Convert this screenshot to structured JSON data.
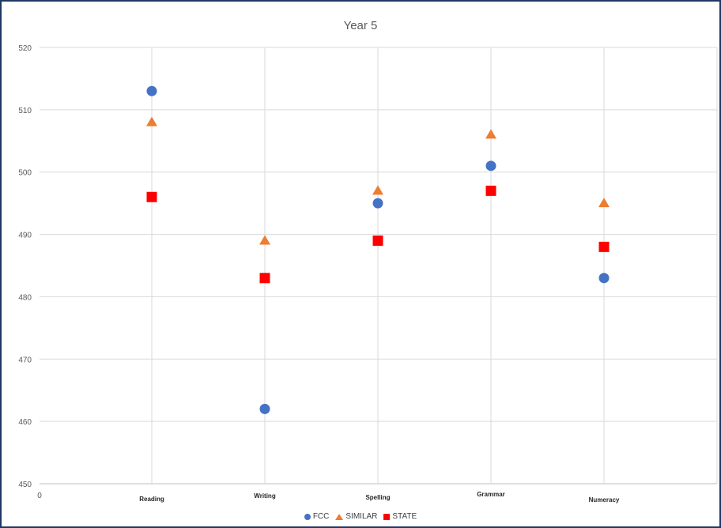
{
  "chart_data": {
    "type": "scatter",
    "title": "Year 5",
    "categories": [
      "Reading",
      "Writing",
      "Spelling",
      "Grammar",
      "Numeracy"
    ],
    "x_origin_label": "0",
    "ylim": [
      450,
      520
    ],
    "yticks": [
      450,
      460,
      470,
      480,
      490,
      500,
      510,
      520
    ],
    "grid": true,
    "legend_position": "bottom",
    "series": [
      {
        "name": "FCC",
        "marker": "circle",
        "color": "#4472c4",
        "values": [
          513,
          462,
          495,
          501,
          483
        ]
      },
      {
        "name": "SIMILAR",
        "marker": "triangle",
        "color": "#ed7d31",
        "values": [
          508,
          489,
          497,
          506,
          495
        ]
      },
      {
        "name": "STATE",
        "marker": "square",
        "color": "#ff0000",
        "values": [
          496,
          483,
          489,
          497,
          488
        ]
      }
    ]
  }
}
